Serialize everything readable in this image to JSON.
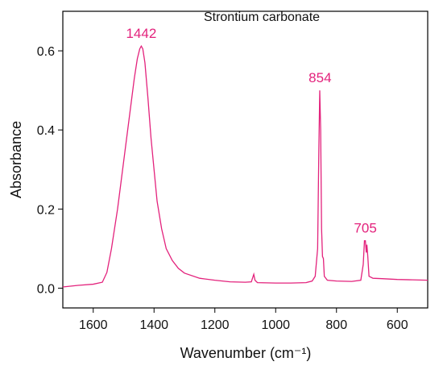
{
  "chart_data": {
    "type": "line",
    "title": "Strontium carbonate",
    "xlabel": "Wavenumber (cm⁻¹)",
    "ylabel": "Absorbance",
    "xlim": [
      1700,
      500
    ],
    "ylim": [
      -0.05,
      0.7
    ],
    "xticks": [
      1600,
      1400,
      1200,
      1000,
      800,
      600
    ],
    "yticks": [
      {
        "value": 0,
        "label": "0.0"
      },
      0.2,
      0.4,
      0.6
    ],
    "series": [
      {
        "name": "Strontium carbonate",
        "color": "#e3227c",
        "x": [
          1700,
          1650,
          1600,
          1570,
          1555,
          1540,
          1520,
          1500,
          1480,
          1465,
          1455,
          1447,
          1442,
          1437,
          1430,
          1420,
          1410,
          1400,
          1390,
          1375,
          1360,
          1340,
          1320,
          1300,
          1250,
          1200,
          1150,
          1100,
          1080,
          1072,
          1068,
          1060,
          1000,
          950,
          900,
          880,
          870,
          862,
          858,
          855,
          852,
          849,
          846,
          843,
          840,
          830,
          800,
          750,
          720,
          712,
          708,
          705,
          702,
          700,
          697,
          693,
          680,
          650,
          600,
          550,
          500
        ],
        "values": [
          0.003,
          0.007,
          0.01,
          0.015,
          0.04,
          0.1,
          0.2,
          0.32,
          0.44,
          0.53,
          0.58,
          0.605,
          0.612,
          0.605,
          0.57,
          0.48,
          0.38,
          0.3,
          0.22,
          0.15,
          0.1,
          0.07,
          0.05,
          0.038,
          0.025,
          0.02,
          0.016,
          0.015,
          0.016,
          0.035,
          0.02,
          0.014,
          0.013,
          0.013,
          0.014,
          0.018,
          0.03,
          0.1,
          0.35,
          0.5,
          0.4,
          0.15,
          0.08,
          0.075,
          0.03,
          0.02,
          0.018,
          0.017,
          0.02,
          0.06,
          0.12,
          0.12,
          0.09,
          0.11,
          0.08,
          0.03,
          0.025,
          0.024,
          0.022,
          0.021,
          0.02
        ]
      }
    ],
    "annotations": [
      {
        "label": "1442",
        "x": 1442,
        "y": 0.612
      },
      {
        "label": "854",
        "x": 854,
        "y": 0.5
      },
      {
        "label": "705",
        "x": 705,
        "y": 0.12
      }
    ]
  }
}
